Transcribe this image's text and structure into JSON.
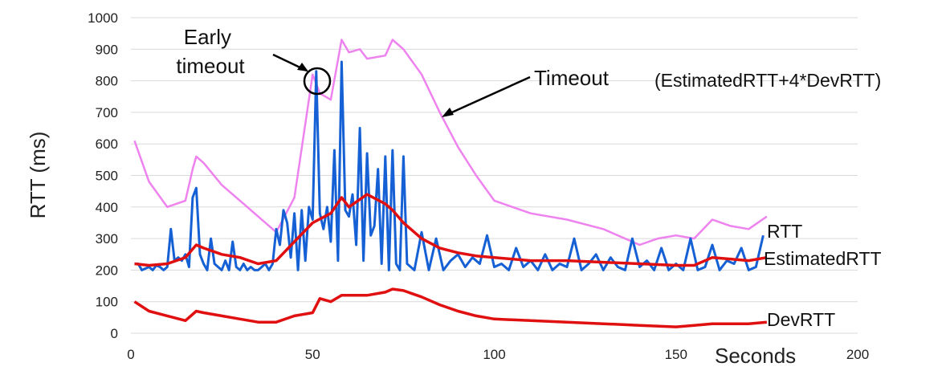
{
  "chart_data": {
    "type": "line",
    "xlabel": "Seconds",
    "ylabel": "RTT (ms)",
    "xlim": [
      0,
      200
    ],
    "ylim": [
      0,
      1000
    ],
    "x_ticks": [
      0,
      50,
      100,
      150,
      200
    ],
    "y_ticks": [
      0,
      100,
      200,
      300,
      400,
      500,
      600,
      700,
      800,
      900,
      1000
    ],
    "grid": "horizontal",
    "colors": {
      "RTT": "#1560d4",
      "EstimatedRTT": "#e01010",
      "DevRTT": "#e01010",
      "Timeout": "#ee82ee"
    },
    "series": [
      {
        "name": "RTT",
        "x": [
          1,
          2,
          3,
          5,
          6,
          7,
          8,
          9,
          10,
          11,
          12,
          13,
          14,
          15,
          16,
          17,
          18,
          19,
          20,
          21,
          22,
          23,
          24,
          25,
          26,
          27,
          28,
          29,
          30,
          31,
          32,
          33,
          34,
          35,
          36,
          37,
          38,
          39,
          40,
          41,
          42,
          43,
          44,
          45,
          46,
          47,
          48,
          49,
          50,
          51,
          52,
          53,
          54,
          55,
          56,
          57,
          58,
          59,
          60,
          61,
          62,
          63,
          64,
          65,
          66,
          67,
          68,
          69,
          70,
          71,
          72,
          73,
          74,
          75,
          76,
          78,
          80,
          82,
          84,
          86,
          88,
          90,
          92,
          94,
          96,
          98,
          100,
          102,
          104,
          106,
          108,
          110,
          112,
          114,
          116,
          118,
          120,
          122,
          124,
          126,
          128,
          130,
          132,
          134,
          136,
          138,
          140,
          142,
          144,
          146,
          148,
          150,
          152,
          154,
          156,
          158,
          160,
          162,
          164,
          166,
          168,
          170,
          172,
          174
        ],
        "values": [
          220,
          220,
          200,
          210,
          200,
          215,
          210,
          200,
          210,
          330,
          230,
          240,
          230,
          250,
          210,
          430,
          460,
          250,
          220,
          200,
          300,
          220,
          210,
          200,
          230,
          200,
          290,
          210,
          200,
          220,
          200,
          210,
          200,
          200,
          210,
          220,
          200,
          220,
          330,
          280,
          390,
          350,
          240,
          380,
          200,
          390,
          230,
          400,
          360,
          830,
          380,
          330,
          400,
          290,
          580,
          230,
          860,
          390,
          370,
          440,
          280,
          650,
          230,
          570,
          310,
          340,
          520,
          220,
          560,
          200,
          580,
          220,
          200,
          560,
          220,
          200,
          320,
          200,
          300,
          200,
          230,
          250,
          210,
          240,
          220,
          310,
          210,
          220,
          200,
          270,
          210,
          230,
          200,
          250,
          200,
          220,
          210,
          300,
          200,
          220,
          250,
          200,
          240,
          210,
          200,
          300,
          210,
          230,
          200,
          270,
          200,
          220,
          200,
          300,
          200,
          210,
          280,
          200,
          230,
          220,
          270,
          200,
          210,
          310
        ]
      },
      {
        "name": "EstimatedRTT",
        "x": [
          1,
          5,
          10,
          15,
          18,
          20,
          25,
          30,
          35,
          40,
          45,
          50,
          55,
          58,
          60,
          65,
          70,
          72,
          75,
          80,
          85,
          90,
          95,
          100,
          110,
          120,
          130,
          140,
          150,
          155,
          160,
          165,
          170,
          175
        ],
        "values": [
          220,
          215,
          220,
          240,
          280,
          270,
          250,
          240,
          220,
          230,
          290,
          350,
          380,
          430,
          400,
          440,
          410,
          390,
          350,
          300,
          270,
          255,
          245,
          240,
          230,
          230,
          225,
          220,
          215,
          215,
          240,
          235,
          230,
          240
        ]
      },
      {
        "name": "DevRTT",
        "x": [
          1,
          5,
          10,
          15,
          18,
          20,
          25,
          30,
          35,
          40,
          45,
          50,
          52,
          55,
          58,
          60,
          65,
          70,
          72,
          75,
          80,
          85,
          90,
          95,
          100,
          110,
          120,
          130,
          140,
          150,
          155,
          160,
          165,
          170,
          175
        ],
        "values": [
          100,
          70,
          55,
          40,
          70,
          65,
          55,
          45,
          35,
          35,
          55,
          65,
          110,
          100,
          120,
          120,
          120,
          130,
          140,
          135,
          115,
          90,
          70,
          55,
          45,
          40,
          35,
          30,
          25,
          20,
          25,
          30,
          30,
          30,
          35
        ]
      },
      {
        "name": "Timeout",
        "x": [
          1,
          5,
          10,
          15,
          17,
          18,
          20,
          25,
          30,
          35,
          40,
          45,
          50,
          52,
          55,
          58,
          60,
          63,
          65,
          70,
          72,
          75,
          80,
          85,
          90,
          95,
          100,
          105,
          110,
          120,
          130,
          140,
          145,
          150,
          155,
          160,
          165,
          170,
          175
        ],
        "values": [
          610,
          480,
          400,
          420,
          520,
          560,
          540,
          470,
          420,
          370,
          320,
          430,
          820,
          760,
          740,
          930,
          890,
          900,
          870,
          880,
          930,
          900,
          820,
          700,
          590,
          500,
          420,
          400,
          380,
          360,
          330,
          280,
          300,
          310,
          300,
          360,
          340,
          330,
          370
        ]
      }
    ],
    "annotations": {
      "early_timeout": "Early\ntimeout",
      "timeout": "Timeout",
      "timeout_formula": "(EstimatedRTT+4*DevRTT)"
    },
    "series_labels": {
      "rtt": "RTT",
      "estimated": "EstimatedRTT",
      "dev": "DevRTT"
    }
  }
}
